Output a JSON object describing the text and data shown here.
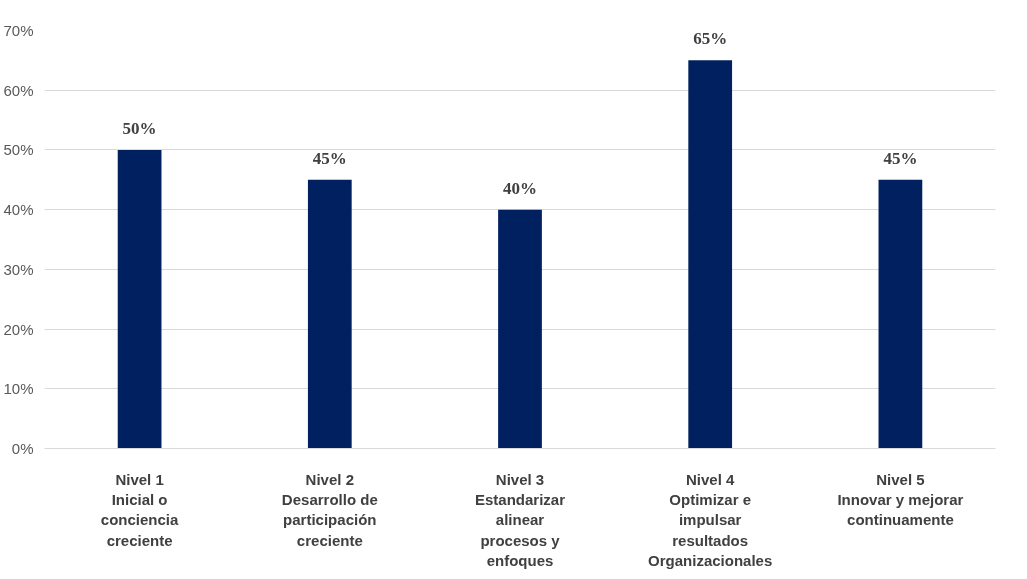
{
  "chart_data": {
    "type": "bar",
    "categories": [
      "Nivel 1\nInicial o\nconciencia\ncreciente",
      "Nivel 2\nDesarrollo de\nparticipación\ncreciente",
      "Nivel 3\nEstandarizar\nalinear\nprocesos y\nenfoques",
      "Nivel 4\nOptimizar e\nimpulsar\nresultados\nOrganizacionales",
      "Nivel 5\nInnovar y mejorar\ncontinuamente"
    ],
    "values": [
      50,
      45,
      40,
      65,
      45
    ],
    "value_labels": [
      "50%",
      "45%",
      "40%",
      "65%",
      "45%"
    ],
    "color": "#002060",
    "ylim": [
      0,
      70
    ],
    "yticks": [
      {
        "value": 0,
        "label": "0%"
      },
      {
        "value": 10,
        "label": "10%"
      },
      {
        "value": 20,
        "label": "20%"
      },
      {
        "value": 30,
        "label": "30%"
      },
      {
        "value": 40,
        "label": "40%"
      },
      {
        "value": 50,
        "label": "50%"
      },
      {
        "value": 60,
        "label": "60%"
      },
      {
        "value": 70,
        "label": "70%"
      }
    ],
    "grid": "y"
  }
}
